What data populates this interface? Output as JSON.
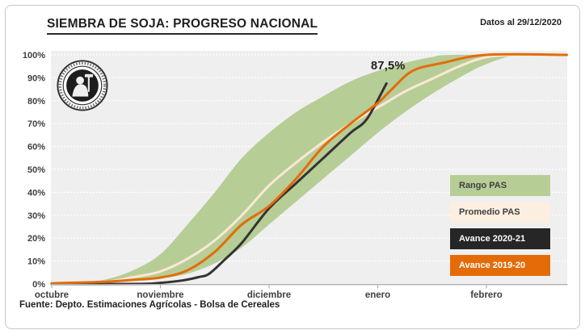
{
  "figure": {
    "title": "SIEMBRA DE SOJA: PROGRESO NACIONAL",
    "date_note": "Datos al 29/12/2020",
    "source": "Fuente: Depto. Estimaciones Agrícolas - Bolsa de Cereales"
  },
  "colors": {
    "plot_bg": "#efefef",
    "grid": "#ffffff",
    "axis": "#b0b0b0",
    "band_green": "#b7cd96",
    "promedio_cream": "#fbe8d5",
    "avance_2020_black": "#333333",
    "avance_2019_orange": "#e36c09",
    "label_text": "#3f3f3f"
  },
  "legend": {
    "position": "right-lower stacked boxes",
    "items": [
      {
        "label": "Rango PAS",
        "bg": "#b7cd96",
        "fg": "#3f3f3f"
      },
      {
        "label": "Promedio PAS",
        "bg": "#fcefe1",
        "fg": "#3f3f3f"
      },
      {
        "label": "Avance 2020-21",
        "bg": "#262626",
        "fg": "#ffffff"
      },
      {
        "label": "Avance 2019-20",
        "bg": "#e36c09",
        "fg": "#ffffff"
      }
    ]
  },
  "chart_data": {
    "type": "area",
    "title": "SIEMBRA DE SOJA: PROGRESO NACIONAL",
    "xlabel": "",
    "ylabel": "",
    "x_unit": "months (0 = octubre, 1 = noviembre, 2 = diciembre, 3 = enero, 4 = febrero)",
    "x_range": [
      0,
      4.74
    ],
    "ylim": [
      0,
      100
    ],
    "grid": "horizontal white dashed lines every 10%",
    "x_ticks": [
      0,
      1,
      2,
      3,
      4
    ],
    "x_tick_labels": [
      "octubre",
      "noviembre",
      "diciembre",
      "enero",
      "febrero"
    ],
    "y_tick_labels": [
      "0%",
      "10%",
      "20%",
      "30%",
      "40%",
      "50%",
      "60%",
      "70%",
      "80%",
      "90%",
      "100%"
    ],
    "annotation": {
      "text": "87,5%",
      "x": 3.08,
      "y": 87.5
    },
    "series": [
      {
        "name": "Rango PAS",
        "type": "band",
        "color": "#b7cd96",
        "points_max": [
          [
            0,
            0
          ],
          [
            0.25,
            0.5
          ],
          [
            0.5,
            2
          ],
          [
            0.75,
            6
          ],
          [
            1,
            13
          ],
          [
            1.25,
            26
          ],
          [
            1.5,
            40
          ],
          [
            1.75,
            55
          ],
          [
            2,
            66
          ],
          [
            2.25,
            75
          ],
          [
            2.5,
            82
          ],
          [
            2.75,
            88.5
          ],
          [
            3,
            93
          ],
          [
            3.25,
            96.5
          ],
          [
            3.5,
            99
          ],
          [
            3.7,
            100
          ],
          [
            4.74,
            100
          ]
        ],
        "points_min": [
          [
            0,
            0
          ],
          [
            0.5,
            0.5
          ],
          [
            0.75,
            1.5
          ],
          [
            1,
            2.5
          ],
          [
            1.25,
            4.5
          ],
          [
            1.5,
            9
          ],
          [
            1.75,
            16
          ],
          [
            2,
            26
          ],
          [
            2.25,
            36
          ],
          [
            2.5,
            46
          ],
          [
            2.75,
            56
          ],
          [
            3,
            66
          ],
          [
            3.25,
            75
          ],
          [
            3.5,
            83
          ],
          [
            3.75,
            90
          ],
          [
            4,
            96
          ],
          [
            4.3,
            100
          ],
          [
            4.74,
            100
          ]
        ]
      },
      {
        "name": "Promedio PAS",
        "type": "line",
        "color": "#fbe8d5",
        "width": 3,
        "points": [
          [
            0,
            0
          ],
          [
            0.5,
            1
          ],
          [
            0.75,
            3
          ],
          [
            1,
            5.5
          ],
          [
            1.25,
            11
          ],
          [
            1.5,
            19
          ],
          [
            1.75,
            30
          ],
          [
            2,
            43
          ],
          [
            2.25,
            53
          ],
          [
            2.5,
            62
          ],
          [
            2.75,
            70
          ],
          [
            3,
            77
          ],
          [
            3.25,
            84
          ],
          [
            3.5,
            89.5
          ],
          [
            3.75,
            95
          ],
          [
            4,
            99
          ],
          [
            4.3,
            100
          ],
          [
            4.74,
            100
          ]
        ]
      },
      {
        "name": "Avance 2020-21",
        "type": "line",
        "color": "#333333",
        "width": 3,
        "points": [
          [
            0,
            0
          ],
          [
            0.8,
            0
          ],
          [
            1,
            0.5
          ],
          [
            1.2,
            1.5
          ],
          [
            1.35,
            3
          ],
          [
            1.45,
            4.5
          ],
          [
            1.6,
            11
          ],
          [
            1.75,
            18
          ],
          [
            2,
            33
          ],
          [
            2.25,
            44
          ],
          [
            2.5,
            55
          ],
          [
            2.75,
            66
          ],
          [
            2.9,
            72
          ],
          [
            3.08,
            87.5
          ]
        ]
      },
      {
        "name": "Avance 2019-20",
        "type": "line",
        "color": "#e36c09",
        "width": 3,
        "points": [
          [
            0,
            0.3
          ],
          [
            0.5,
            1
          ],
          [
            0.75,
            1.8
          ],
          [
            1,
            2.8
          ],
          [
            1.25,
            6
          ],
          [
            1.5,
            14
          ],
          [
            1.75,
            26
          ],
          [
            2,
            34
          ],
          [
            2.25,
            46
          ],
          [
            2.5,
            60
          ],
          [
            2.75,
            70
          ],
          [
            3,
            79
          ],
          [
            3.12,
            84.5
          ],
          [
            3.32,
            93
          ],
          [
            3.6,
            96.5
          ],
          [
            4,
            100
          ],
          [
            4.74,
            100
          ]
        ]
      }
    ]
  }
}
